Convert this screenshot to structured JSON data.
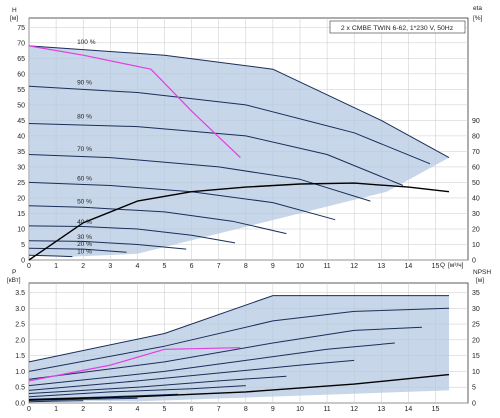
{
  "chart_data": [
    {
      "type": "line",
      "panel": "head-efficiency",
      "title": "2 x CMBE TWIN 6-62, 1*230 V, 50Hz",
      "ylabel": "H",
      "yunit": "[м]",
      "ylabel_right": "eta",
      "yunit_right": "[%]",
      "xlabel": "Q",
      "xunit": "[м³/ч]",
      "x_ticks": [
        "0",
        "1",
        "2",
        "3",
        "4",
        "5",
        "6",
        "7",
        "8",
        "9",
        "10",
        "11",
        "12",
        "13",
        "14",
        "15"
      ],
      "y_ticks": [
        "0",
        "5",
        "10",
        "15",
        "20",
        "25",
        "30",
        "35",
        "40",
        "45",
        "50",
        "55",
        "60",
        "65",
        "70",
        "75"
      ],
      "y_right_ticks": [
        "0",
        "10",
        "20",
        "30",
        "40",
        "50",
        "60",
        "70",
        "80",
        "90"
      ],
      "xlim": [
        0,
        16.2
      ],
      "ylim": [
        0,
        78
      ],
      "ylim_right": [
        0,
        156
      ],
      "grid": true,
      "speed_labels": [
        "100 %",
        "90 %",
        "80 %",
        "70 %",
        "60 %",
        "50 %",
        "40 %",
        "30 %",
        "20 %",
        "10 %"
      ],
      "speed_label_positions": [
        {
          "x": 1.7,
          "y": 69
        },
        {
          "x": 1.7,
          "y": 56
        },
        {
          "x": 1.7,
          "y": 45
        },
        {
          "x": 1.7,
          "y": 34.5
        },
        {
          "x": 1.7,
          "y": 25
        },
        {
          "x": 1.7,
          "y": 17.5
        },
        {
          "x": 1.7,
          "y": 11
        },
        {
          "x": 1.7,
          "y": 6.2
        },
        {
          "x": 1.7,
          "y": 3.8
        },
        {
          "x": 1.7,
          "y": 1.5
        }
      ],
      "series": [
        {
          "name": "100 %",
          "x": [
            0,
            5,
            9,
            13,
            15.5
          ],
          "y": [
            69,
            66,
            61.5,
            45,
            33
          ]
        },
        {
          "name": "90 %",
          "x": [
            0,
            4,
            8,
            12,
            14.8
          ],
          "y": [
            56,
            54,
            50,
            41,
            31
          ]
        },
        {
          "name": "80 %",
          "x": [
            0,
            4,
            8,
            11,
            13.8
          ],
          "y": [
            44,
            43,
            40,
            34,
            24
          ]
        },
        {
          "name": "70 %",
          "x": [
            0,
            3,
            7,
            10,
            12.6
          ],
          "y": [
            34,
            33,
            30,
            26,
            19
          ]
        },
        {
          "name": "60 %",
          "x": [
            0,
            3,
            6,
            9,
            11.3
          ],
          "y": [
            25,
            24,
            22,
            18.5,
            13
          ]
        },
        {
          "name": "50 %",
          "x": [
            0,
            2,
            5,
            7.5,
            9.5
          ],
          "y": [
            17.5,
            17,
            15.5,
            12.5,
            8.5
          ]
        },
        {
          "name": "40 %",
          "x": [
            0,
            2,
            4,
            6,
            7.6
          ],
          "y": [
            11,
            10.8,
            10,
            8,
            5.5
          ]
        },
        {
          "name": "30 %",
          "x": [
            0,
            2,
            4,
            5.8
          ],
          "y": [
            6.2,
            6,
            5,
            3.5
          ]
        },
        {
          "name": "20 %",
          "x": [
            0,
            2,
            3.6
          ],
          "y": [
            3.8,
            3.5,
            2.5
          ]
        },
        {
          "name": "10 %",
          "x": [
            0,
            1,
            1.6
          ],
          "y": [
            1.5,
            1.3,
            1.1
          ]
        },
        {
          "name": "eta",
          "x": [
            0,
            2,
            4,
            6,
            8,
            10,
            12,
            14,
            15.5
          ],
          "y": [
            0,
            12,
            19,
            22,
            23.5,
            24.5,
            24.8,
            23.5,
            22
          ]
        },
        {
          "name": "selected",
          "x": [
            0,
            2,
            4.5,
            6,
            7.8
          ],
          "y": [
            69,
            66,
            61.5,
            48,
            33
          ]
        }
      ],
      "accent": "#e040e0",
      "region_color": "#b4c8e0"
    },
    {
      "type": "line",
      "panel": "power-npsh",
      "ylabel": "P",
      "yunit": "[кВт]",
      "ylabel_right": "NPSH",
      "yunit_right": "[м]",
      "x_ticks": [
        "0",
        "1",
        "2",
        "3",
        "4",
        "5",
        "6",
        "7",
        "8",
        "9",
        "10",
        "11",
        "12",
        "13",
        "14",
        "15"
      ],
      "y_ticks": [
        "0.0",
        "0.5",
        "1.0",
        "1.5",
        "2.0",
        "2.5",
        "3.0",
        "3.5"
      ],
      "y_right_ticks": [
        "0",
        "5",
        "10",
        "15",
        "20",
        "25",
        "30",
        "35"
      ],
      "xlim": [
        0,
        16.2
      ],
      "ylim": [
        0,
        3.8
      ],
      "ylim_right": [
        0,
        38
      ],
      "grid": true,
      "series": [
        {
          "name": "100 %",
          "x": [
            0,
            5,
            9,
            12,
            15.5
          ],
          "y": [
            1.3,
            2.2,
            3.4,
            3.4,
            3.4
          ]
        },
        {
          "name": "90 %",
          "x": [
            0,
            5,
            9,
            12,
            15.5
          ],
          "y": [
            1.0,
            1.8,
            2.6,
            2.9,
            3.0
          ]
        },
        {
          "name": "80 %",
          "x": [
            0,
            5,
            9,
            12,
            14.5
          ],
          "y": [
            0.75,
            1.3,
            1.9,
            2.3,
            2.4
          ]
        },
        {
          "name": "70 %",
          "x": [
            0,
            5,
            8,
            11,
            13.5
          ],
          "y": [
            0.55,
            1.0,
            1.35,
            1.7,
            1.9
          ]
        },
        {
          "name": "60 %",
          "x": [
            0,
            4,
            7,
            10,
            12
          ],
          "y": [
            0.4,
            0.7,
            0.95,
            1.2,
            1.35
          ]
        },
        {
          "name": "50 %",
          "x": [
            0,
            4,
            7,
            9.5
          ],
          "y": [
            0.3,
            0.5,
            0.7,
            0.85
          ]
        },
        {
          "name": "40 %",
          "x": [
            0,
            3,
            6,
            8
          ],
          "y": [
            0.2,
            0.35,
            0.45,
            0.55
          ]
        },
        {
          "name": "30 %",
          "x": [
            0,
            3,
            5.5
          ],
          "y": [
            0.12,
            0.2,
            0.28
          ]
        },
        {
          "name": "20 %",
          "x": [
            0,
            2,
            4
          ],
          "y": [
            0.08,
            0.12,
            0.15
          ]
        },
        {
          "name": "10 %",
          "x": [
            0,
            1,
            2
          ],
          "y": [
            0.04,
            0.06,
            0.07
          ]
        },
        {
          "name": "selected",
          "x": [
            0,
            3,
            5,
            7.8
          ],
          "y": [
            0.7,
            1.2,
            1.7,
            1.75
          ]
        },
        {
          "name": "NPSH",
          "x": [
            0,
            4,
            8,
            12,
            15.5
          ],
          "y": [
            0.1,
            0.2,
            0.35,
            0.6,
            0.9
          ]
        }
      ]
    }
  ]
}
